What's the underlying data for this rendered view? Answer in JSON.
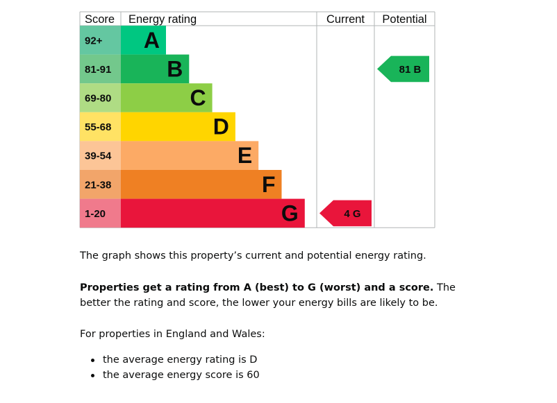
{
  "chart_data": {
    "type": "table",
    "headers": {
      "score": "Score",
      "energy_rating": "Energy rating",
      "current": "Current",
      "potential": "Potential"
    },
    "bands": [
      {
        "band": "A",
        "range": "92+",
        "color": "#00c781",
        "score_color": "#64c7a1"
      },
      {
        "band": "B",
        "range": "81-91",
        "color": "#19b459",
        "score_color": "#73c88c"
      },
      {
        "band": "C",
        "range": "69-80",
        "color": "#8dce46",
        "score_color": "#afdc84"
      },
      {
        "band": "D",
        "range": "55-68",
        "color": "#ffd500",
        "score_color": "#ffe264"
      },
      {
        "band": "E",
        "range": "39-54",
        "color": "#fcaa65",
        "score_color": "#fcc597"
      },
      {
        "band": "F",
        "range": "21-38",
        "color": "#ef8023",
        "score_color": "#f2a56a"
      },
      {
        "band": "G",
        "range": "1-20",
        "color": "#e9153b",
        "score_color": "#f07a8c"
      }
    ],
    "current": {
      "score": 4,
      "band": "G",
      "label": "4 G"
    },
    "potential": {
      "score": 81,
      "band": "B",
      "label": "81 B"
    }
  },
  "text": {
    "intro": "The graph shows this property’s current and potential energy rating.",
    "rating_bold": "Properties get a rating from A (best) to G (worst) and a score.",
    "rating_rest": " The better the rating and score, the lower your energy bills are likely to be.",
    "england_wales": "For properties in England and Wales:",
    "bullets": [
      "the average energy rating is D",
      "the average energy score is 60"
    ]
  }
}
